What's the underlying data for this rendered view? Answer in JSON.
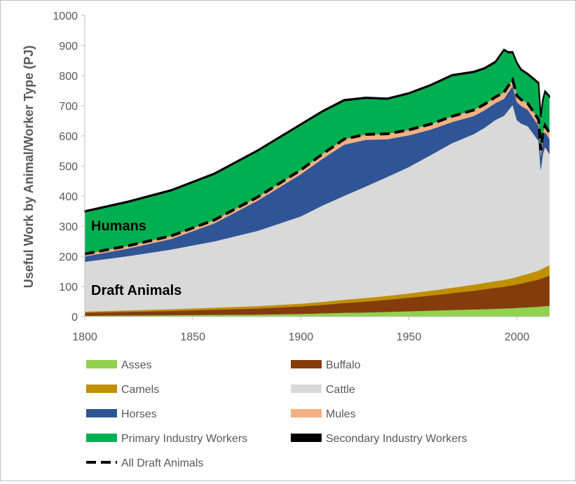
{
  "chart_data": {
    "type": "area",
    "title": "",
    "xlabel": "",
    "ylabel": "Useful Work by Animal/Worker Type (PJ)",
    "xlim": [
      1800,
      2015
    ],
    "ylim": [
      0,
      1000
    ],
    "x_ticks": [
      "1800",
      "1850",
      "1900",
      "1950",
      "2000"
    ],
    "y_ticks": [
      "0",
      "100",
      "200",
      "300",
      "400",
      "500",
      "600",
      "700",
      "800",
      "900",
      "1000"
    ],
    "annotations": [
      "Humans",
      "Draft Animals"
    ],
    "legend_position": "bottom",
    "x": [
      1800,
      1820,
      1840,
      1860,
      1880,
      1900,
      1910,
      1920,
      1930,
      1940,
      1950,
      1960,
      1970,
      1980,
      1985,
      1990,
      1994,
      1996,
      1998,
      2000,
      2002,
      2005,
      2010,
      2011,
      2012,
      2013,
      2015
    ],
    "series": [
      {
        "name": "Asses",
        "color": "#92d050",
        "values": [
          3,
          4,
          5,
          6,
          7,
          9,
          11,
          13,
          14,
          16,
          18,
          20,
          22,
          24,
          25,
          26,
          27,
          28,
          28,
          29,
          30,
          31,
          33,
          34,
          34,
          35,
          36
        ]
      },
      {
        "name": "Buffalo",
        "color": "#843c0c",
        "values": [
          10,
          12,
          14,
          17,
          20,
          25,
          28,
          32,
          36,
          40,
          45,
          50,
          56,
          62,
          66,
          70,
          72,
          74,
          76,
          78,
          80,
          84,
          90,
          92,
          94,
          96,
          100
        ]
      },
      {
        "name": "Camels",
        "color": "#bf9000",
        "values": [
          4,
          5,
          6,
          7,
          8,
          9,
          10,
          11,
          12,
          13,
          14,
          16,
          18,
          20,
          21,
          22,
          23,
          23,
          24,
          25,
          26,
          27,
          30,
          31,
          32,
          33,
          34
        ]
      },
      {
        "name": "Cattle",
        "color": "#d9d9d9",
        "values": [
          165,
          180,
          198,
          220,
          250,
          290,
          320,
          345,
          370,
          395,
          420,
          450,
          480,
          500,
          515,
          535,
          545,
          560,
          575,
          520,
          505,
          490,
          430,
          330,
          380,
          400,
          370
        ]
      },
      {
        "name": "Horses",
        "color": "#2f5597",
        "values": [
          18,
          25,
          35,
          60,
          100,
          140,
          155,
          170,
          155,
          125,
          105,
          85,
          70,
          60,
          58,
          56,
          56,
          60,
          62,
          60,
          58,
          55,
          50,
          45,
          48,
          50,
          50
        ]
      },
      {
        "name": "Mules",
        "color": "#f4b183",
        "values": [
          8,
          9,
          10,
          11,
          12,
          14,
          16,
          18,
          18,
          18,
          18,
          18,
          19,
          20,
          20,
          20,
          21,
          21,
          21,
          21,
          21,
          21,
          21,
          20,
          20,
          20,
          20
        ]
      },
      {
        "name": "Primary Industry Workers",
        "color": "#00b050",
        "values": [
          140,
          145,
          150,
          152,
          153,
          150,
          140,
          128,
          120,
          115,
          120,
          128,
          135,
          125,
          118,
          115,
          140,
          110,
          90,
          108,
          98,
          96,
          120,
          110,
          110,
          112,
          120
        ]
      },
      {
        "name": "Secondary Industry Workers",
        "color": "#000000",
        "values": [
          3,
          3,
          3,
          3,
          3,
          3,
          3,
          3,
          3,
          3,
          3,
          3,
          3,
          3,
          3,
          3,
          3,
          3,
          3,
          3,
          3,
          3,
          3,
          3,
          3,
          3,
          3
        ]
      }
    ],
    "overlay": {
      "name": "All Draft Animals",
      "style": "dashed",
      "color": "#000000"
    }
  },
  "legend": {
    "items": [
      {
        "label": "Asses",
        "color": "#92d050",
        "type": "box"
      },
      {
        "label": "Buffalo",
        "color": "#843c0c",
        "type": "box"
      },
      {
        "label": "Camels",
        "color": "#bf9000",
        "type": "box"
      },
      {
        "label": "Cattle",
        "color": "#d9d9d9",
        "type": "box"
      },
      {
        "label": "Horses",
        "color": "#2f5597",
        "type": "box"
      },
      {
        "label": "Mules",
        "color": "#f4b183",
        "type": "box"
      },
      {
        "label": "Primary Industry Workers",
        "color": "#00b050",
        "type": "box"
      },
      {
        "label": "Secondary Industry Workers",
        "color": "#000000",
        "type": "box"
      },
      {
        "label": "All Draft Animals",
        "color": "#000000",
        "type": "dash"
      }
    ]
  }
}
